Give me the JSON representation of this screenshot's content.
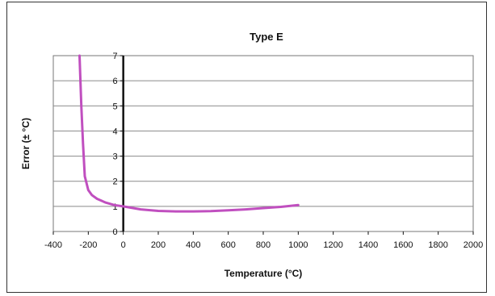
{
  "chart_data": {
    "type": "line",
    "title": "Type E",
    "xlabel": "Temperature (°C)",
    "ylabel": "Error (± °C)",
    "xlim": [
      -400,
      2000
    ],
    "ylim": [
      0,
      7
    ],
    "x_ticks": [
      "-400",
      "-200",
      "0",
      "200",
      "400",
      "600",
      "800",
      "1000",
      "1200",
      "1400",
      "1600",
      "1800",
      "2000"
    ],
    "y_ticks": [
      "0",
      "1",
      "2",
      "3",
      "4",
      "5",
      "6",
      "7"
    ],
    "grid": "horizontal",
    "legend": "none",
    "series": [
      {
        "color": "#c04fbf",
        "x": [
          -250,
          -240,
          -230,
          -220,
          -200,
          -180,
          -150,
          -100,
          -50,
          0,
          100,
          200,
          300,
          400,
          500,
          600,
          700,
          800,
          900,
          1000
        ],
        "y": [
          7.0,
          5.0,
          3.5,
          2.2,
          1.65,
          1.45,
          1.3,
          1.15,
          1.05,
          1.0,
          0.88,
          0.82,
          0.8,
          0.8,
          0.81,
          0.84,
          0.88,
          0.93,
          0.98,
          1.05
        ]
      }
    ]
  }
}
